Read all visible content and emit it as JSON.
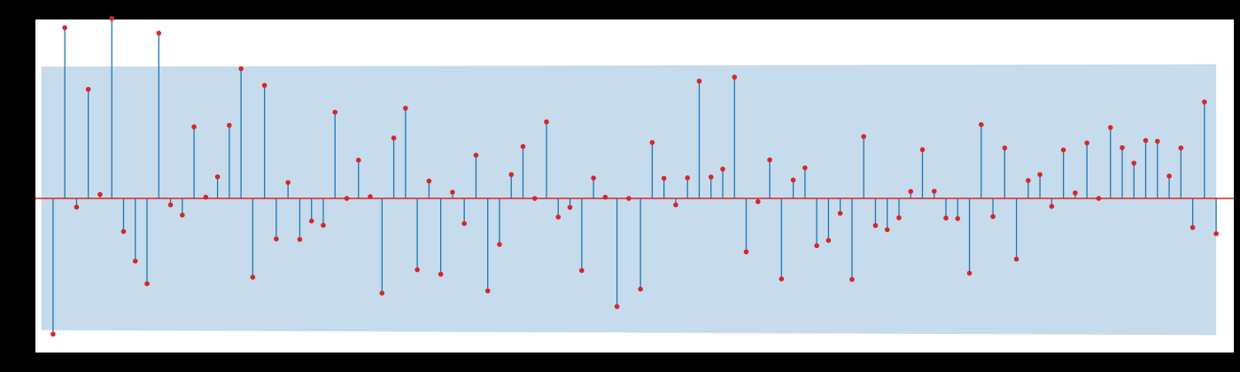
{
  "chart_data": {
    "type": "stem",
    "description_title": "",
    "xlabel": "",
    "ylabel": "",
    "xlim": [
      -0.5,
      101.5
    ],
    "ylim": [
      -0.62,
      0.72
    ],
    "grid": false,
    "colors": {
      "page_background": "#000000",
      "plot_background": "#ffffff",
      "confidence_band": "#c6dbec",
      "stem": "#1f77b4",
      "marker": "#d62728",
      "baseline": "#d62728"
    },
    "confidence_band": {
      "x": [
        0,
        100
      ],
      "upper": [
        0.53,
        0.54
      ],
      "lower": [
        -0.53,
        -0.55
      ]
    },
    "values": [
      -0.546,
      0.687,
      -0.035,
      0.439,
      0.016,
      0.724,
      -0.133,
      -0.252,
      -0.343,
      0.665,
      -0.026,
      -0.067,
      0.288,
      0.005,
      0.087,
      0.294,
      0.522,
      -0.317,
      0.455,
      -0.163,
      0.064,
      -0.165,
      -0.091,
      -0.108,
      0.347,
      0.0,
      0.154,
      0.007,
      -0.381,
      0.243,
      0.363,
      -0.287,
      0.07,
      -0.305,
      0.025,
      -0.101,
      0.174,
      -0.372,
      -0.185,
      0.096,
      0.209,
      0.0,
      0.308,
      -0.075,
      -0.036,
      -0.29,
      0.082,
      0.005,
      -0.435,
      0.0,
      -0.365,
      0.225,
      0.081,
      -0.026,
      0.083,
      0.472,
      0.086,
      0.118,
      0.488,
      -0.215,
      -0.013,
      0.155,
      -0.324,
      0.074,
      0.123,
      -0.19,
      -0.169,
      -0.06,
      -0.326,
      0.249,
      -0.109,
      -0.126,
      -0.078,
      0.028,
      0.196,
      0.029,
      -0.079,
      -0.081,
      -0.301,
      0.297,
      -0.073,
      0.203,
      -0.244,
      0.072,
      0.096,
      -0.032,
      0.195,
      0.022,
      0.223,
      0.0,
      0.285,
      0.204,
      0.142,
      0.233,
      0.23,
      0.09,
      0.203,
      -0.117,
      0.388,
      -0.142
    ]
  }
}
